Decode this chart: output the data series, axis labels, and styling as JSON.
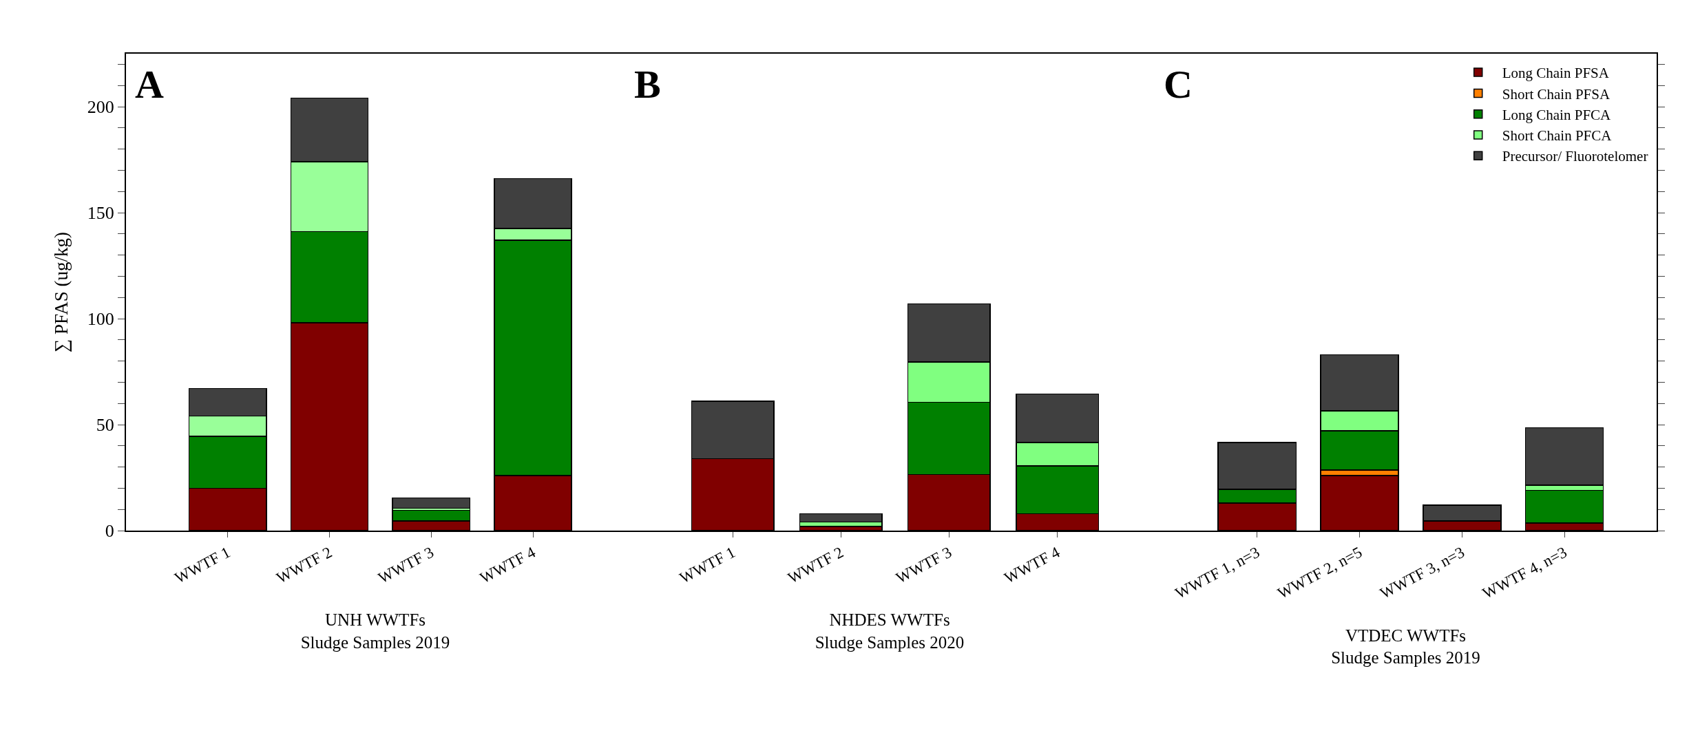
{
  "chart_data": [
    {
      "type": "bar",
      "stacked": true,
      "xlabel": "UNH WWTFs\nSludge Samples 2019",
      "ylabel": "∑ PFAS (ug/kg)",
      "annotations": [
        "A"
      ],
      "categories": [
        "WWTF 1",
        "WWTF 2",
        "WWTF 3",
        "WWTF 4"
      ],
      "series": [
        {
          "color": "#800000",
          "values": [
            20,
            98,
            4.5,
            26
          ]
        },
        {
          "color": "#ff8000",
          "values": [
            0,
            0,
            0,
            0
          ]
        },
        {
          "color": "#008000",
          "values": [
            24.5,
            43,
            5,
            111
          ]
        },
        {
          "color": "#99ff99",
          "values": [
            9.5,
            33,
            1,
            5.5
          ]
        },
        {
          "color": "#404040",
          "values": [
            13,
            30,
            5,
            23.5
          ]
        }
      ],
      "ylim": [
        0,
        225
      ],
      "yticks": [
        0,
        {
          "value": 10,
          "label": null
        },
        {
          "value": 20,
          "label": null
        },
        {
          "value": 30,
          "label": null
        },
        {
          "value": 40,
          "label": null
        },
        50,
        {
          "value": 60,
          "label": null
        },
        {
          "value": 70,
          "label": null
        },
        {
          "value": 80,
          "label": null
        },
        {
          "value": 90,
          "label": null
        },
        100,
        {
          "value": 110,
          "label": null
        },
        {
          "value": 120,
          "label": null
        },
        {
          "value": 130,
          "label": null
        },
        {
          "value": 140,
          "label": null
        },
        150,
        {
          "value": 160,
          "label": null
        },
        {
          "value": 170,
          "label": null
        },
        {
          "value": 180,
          "label": null
        },
        {
          "value": 190,
          "label": null
        },
        200,
        {
          "value": 210,
          "label": null
        },
        {
          "value": 220,
          "label": null
        }
      ],
      "grid": false,
      "legend": false
    },
    {
      "type": "bar",
      "stacked": true,
      "xlabel": "NHDES WWTFs\nSludge Samples 2020",
      "annotations": [
        "B"
      ],
      "categories": [
        "WWTF 1",
        "WWTF 2",
        "WWTF 3",
        "WWTF 4"
      ],
      "series": [
        {
          "color": "#800000",
          "values": [
            34,
            2,
            26.5,
            8
          ]
        },
        {
          "color": "#ff8000",
          "values": [
            0,
            0,
            0,
            0
          ]
        },
        {
          "color": "#008000",
          "values": [
            0,
            0,
            34,
            22.5
          ]
        },
        {
          "color": "#80ff80",
          "values": [
            0,
            2,
            19,
            11
          ]
        },
        {
          "color": "#404040",
          "values": [
            27,
            4,
            27.5,
            23
          ]
        }
      ],
      "ylim": [
        0,
        225
      ],
      "yticks": [
        0,
        {
          "value": 10,
          "label": null
        },
        {
          "value": 20,
          "label": null
        },
        {
          "value": 30,
          "label": null
        },
        {
          "value": 40,
          "label": null
        },
        50,
        {
          "value": 60,
          "label": null
        },
        {
          "value": 70,
          "label": null
        },
        {
          "value": 80,
          "label": null
        },
        {
          "value": 90,
          "label": null
        },
        100,
        {
          "value": 110,
          "label": null
        },
        {
          "value": 120,
          "label": null
        },
        {
          "value": 130,
          "label": null
        },
        {
          "value": 140,
          "label": null
        },
        150,
        {
          "value": 160,
          "label": null
        },
        {
          "value": 170,
          "label": null
        },
        {
          "value": 180,
          "label": null
        },
        {
          "value": 190,
          "label": null
        },
        200,
        {
          "value": 210,
          "label": null
        },
        {
          "value": 220,
          "label": null
        }
      ],
      "tick_labels": "x",
      "grid": false,
      "legend": false
    },
    {
      "type": "bar",
      "stacked": true,
      "xlabel": "VTDEC WWTFs\nSludge Samples 2019",
      "annotations": [
        "C"
      ],
      "categories": [
        "WWTF 1, n=3",
        "WWTF 2, n=5",
        "WWTF 3, n=3",
        "WWTF 4, n=3"
      ],
      "series": [
        {
          "name": "Long Chain PFSA",
          "color": "#800000",
          "values": [
            13,
            26,
            4.5,
            3.5
          ]
        },
        {
          "name": "Short Chain PFSA",
          "color": "#ff8000",
          "values": [
            0,
            2.5,
            0,
            0
          ]
        },
        {
          "name": "Long Chain PFCA",
          "color": "#008000",
          "values": [
            6.5,
            18.5,
            0,
            15.5
          ]
        },
        {
          "name": "Short Chain PFCA",
          "color": "#80ff80",
          "values": [
            0,
            9.5,
            0,
            2.5
          ]
        },
        {
          "name": "Precursor/ Fluorotelomer",
          "color": "#404040",
          "values": [
            22,
            26.5,
            7.5,
            27
          ]
        }
      ],
      "ylim": [
        0,
        225
      ],
      "yticks": [
        0,
        {
          "value": 10,
          "label": null
        },
        {
          "value": 20,
          "label": null
        },
        {
          "value": 30,
          "label": null
        },
        {
          "value": 40,
          "label": null
        },
        50,
        {
          "value": 60,
          "label": null
        },
        {
          "value": 70,
          "label": null
        },
        {
          "value": 80,
          "label": null
        },
        {
          "value": 90,
          "label": null
        },
        100,
        {
          "value": 110,
          "label": null
        },
        {
          "value": 120,
          "label": null
        },
        {
          "value": 130,
          "label": null
        },
        {
          "value": 140,
          "label": null
        },
        150,
        {
          "value": 160,
          "label": null
        },
        {
          "value": 170,
          "label": null
        },
        {
          "value": 180,
          "label": null
        },
        {
          "value": 190,
          "label": null
        },
        200,
        {
          "value": 210,
          "label": null
        },
        {
          "value": 220,
          "label": null
        }
      ],
      "tick_labels": "x",
      "grid": false,
      "legend": "top right"
    }
  ]
}
